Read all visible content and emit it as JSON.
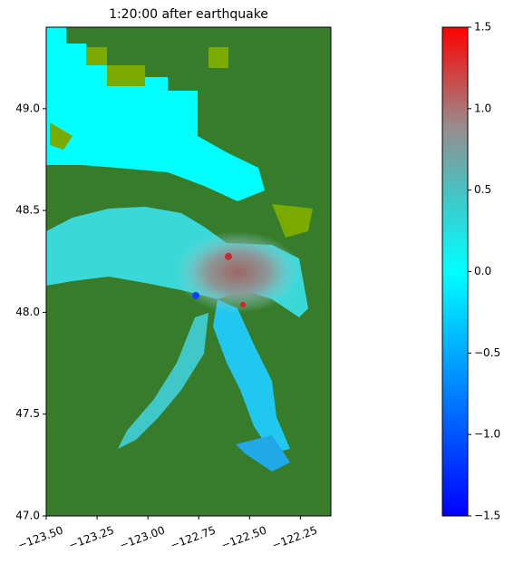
{
  "chart_data": {
    "type": "map",
    "title": "1:20:00 after earthquake",
    "xlim": [
      -123.5,
      -122.1
    ],
    "ylim": [
      47.0,
      49.4
    ],
    "xticks": [
      {
        "value": -123.5,
        "label": "−123.50"
      },
      {
        "value": -123.25,
        "label": "−123.25"
      },
      {
        "value": -123.0,
        "label": "−123.00"
      },
      {
        "value": -122.75,
        "label": "−122.75"
      },
      {
        "value": -122.5,
        "label": "−122.50"
      },
      {
        "value": -122.25,
        "label": "−122.25"
      }
    ],
    "yticks": [
      {
        "value": 47.0,
        "label": "47.0"
      },
      {
        "value": 47.5,
        "label": "47.5"
      },
      {
        "value": 48.0,
        "label": "48.0"
      },
      {
        "value": 48.5,
        "label": "48.5"
      },
      {
        "value": 49.0,
        "label": "49.0"
      }
    ],
    "colorbar": {
      "lim": [
        -1.5,
        1.5
      ],
      "ticks": [
        {
          "value": -1.5,
          "label": "−1.5"
        },
        {
          "value": -1.0,
          "label": "−1.0"
        },
        {
          "value": -0.5,
          "label": "−0.5"
        },
        {
          "value": 0.0,
          "label": "0.0"
        },
        {
          "value": 0.5,
          "label": "0.5"
        },
        {
          "value": 1.0,
          "label": "1.0"
        },
        {
          "value": 1.5,
          "label": "1.5"
        }
      ]
    }
  }
}
